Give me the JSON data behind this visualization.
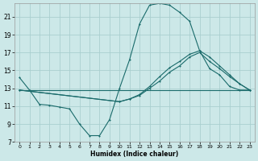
{
  "xlabel": "Humidex (Indice chaleur)",
  "bg_color": "#cce8e8",
  "grid_color": "#aacfcf",
  "line_color": "#1a6b6b",
  "xlim": [
    -0.5,
    23.5
  ],
  "ylim": [
    7,
    22.5
  ],
  "xticks": [
    0,
    1,
    2,
    3,
    4,
    5,
    6,
    7,
    8,
    9,
    10,
    11,
    12,
    13,
    14,
    15,
    16,
    17,
    18,
    19,
    20,
    21,
    22,
    23
  ],
  "yticks": [
    7,
    9,
    11,
    13,
    15,
    17,
    19,
    21
  ],
  "line1_x": [
    0,
    1,
    2,
    3,
    4,
    5,
    6,
    7,
    8,
    9,
    10,
    11,
    12,
    13,
    14,
    15,
    16,
    17,
    18,
    19,
    20,
    21,
    22,
    23
  ],
  "line1_y": [
    14.2,
    12.8,
    11.2,
    11.1,
    10.9,
    10.7,
    9.0,
    7.7,
    7.7,
    9.5,
    13.0,
    16.2,
    20.2,
    22.3,
    22.5,
    22.3,
    21.5,
    20.5,
    17.2,
    15.2,
    14.5,
    13.2,
    12.8,
    12.8
  ],
  "line2_x": [
    0,
    23
  ],
  "line2_y": [
    12.8,
    12.8
  ],
  "line3_x": [
    0,
    10,
    11,
    12,
    13,
    14,
    15,
    16,
    17,
    18,
    19,
    20,
    21,
    22,
    23
  ],
  "line3_y": [
    12.8,
    11.5,
    11.8,
    12.2,
    13.0,
    13.8,
    14.8,
    15.5,
    16.5,
    17.0,
    16.0,
    15.2,
    14.3,
    13.5,
    12.8
  ],
  "line4_x": [
    0,
    10,
    11,
    12,
    13,
    14,
    15,
    16,
    17,
    18,
    19,
    20,
    21,
    22,
    23
  ],
  "line4_y": [
    12.8,
    11.5,
    11.8,
    12.3,
    13.2,
    14.3,
    15.3,
    16.0,
    16.8,
    17.2,
    16.5,
    15.5,
    14.5,
    13.5,
    12.8
  ]
}
